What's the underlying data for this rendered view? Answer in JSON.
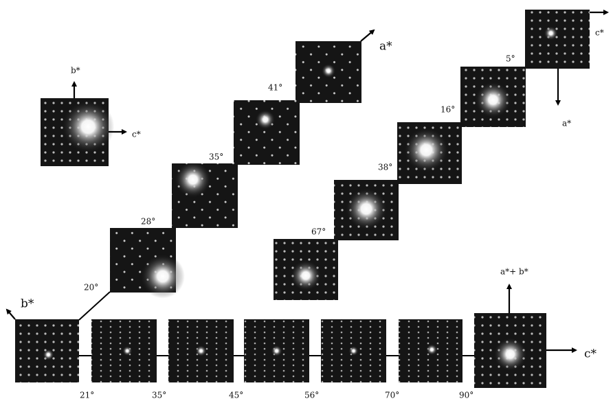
{
  "figure": {
    "top_left": {
      "up_label": "b*",
      "right_label": "c*"
    },
    "middle_series": {
      "axis_label": "a*",
      "angles": [
        "20°",
        "28°",
        "35°",
        "41°"
      ]
    },
    "right_series": {
      "right_label": "c*",
      "down_label": "a*",
      "angles": [
        "67°",
        "38°",
        "16°",
        "5°"
      ]
    },
    "bottom_series": {
      "left_label": "b*",
      "up_label": "a*+ b*",
      "right_label": "c*",
      "angles": [
        "21°",
        "35°",
        "45°",
        "56°",
        "70°",
        "90°"
      ]
    }
  }
}
